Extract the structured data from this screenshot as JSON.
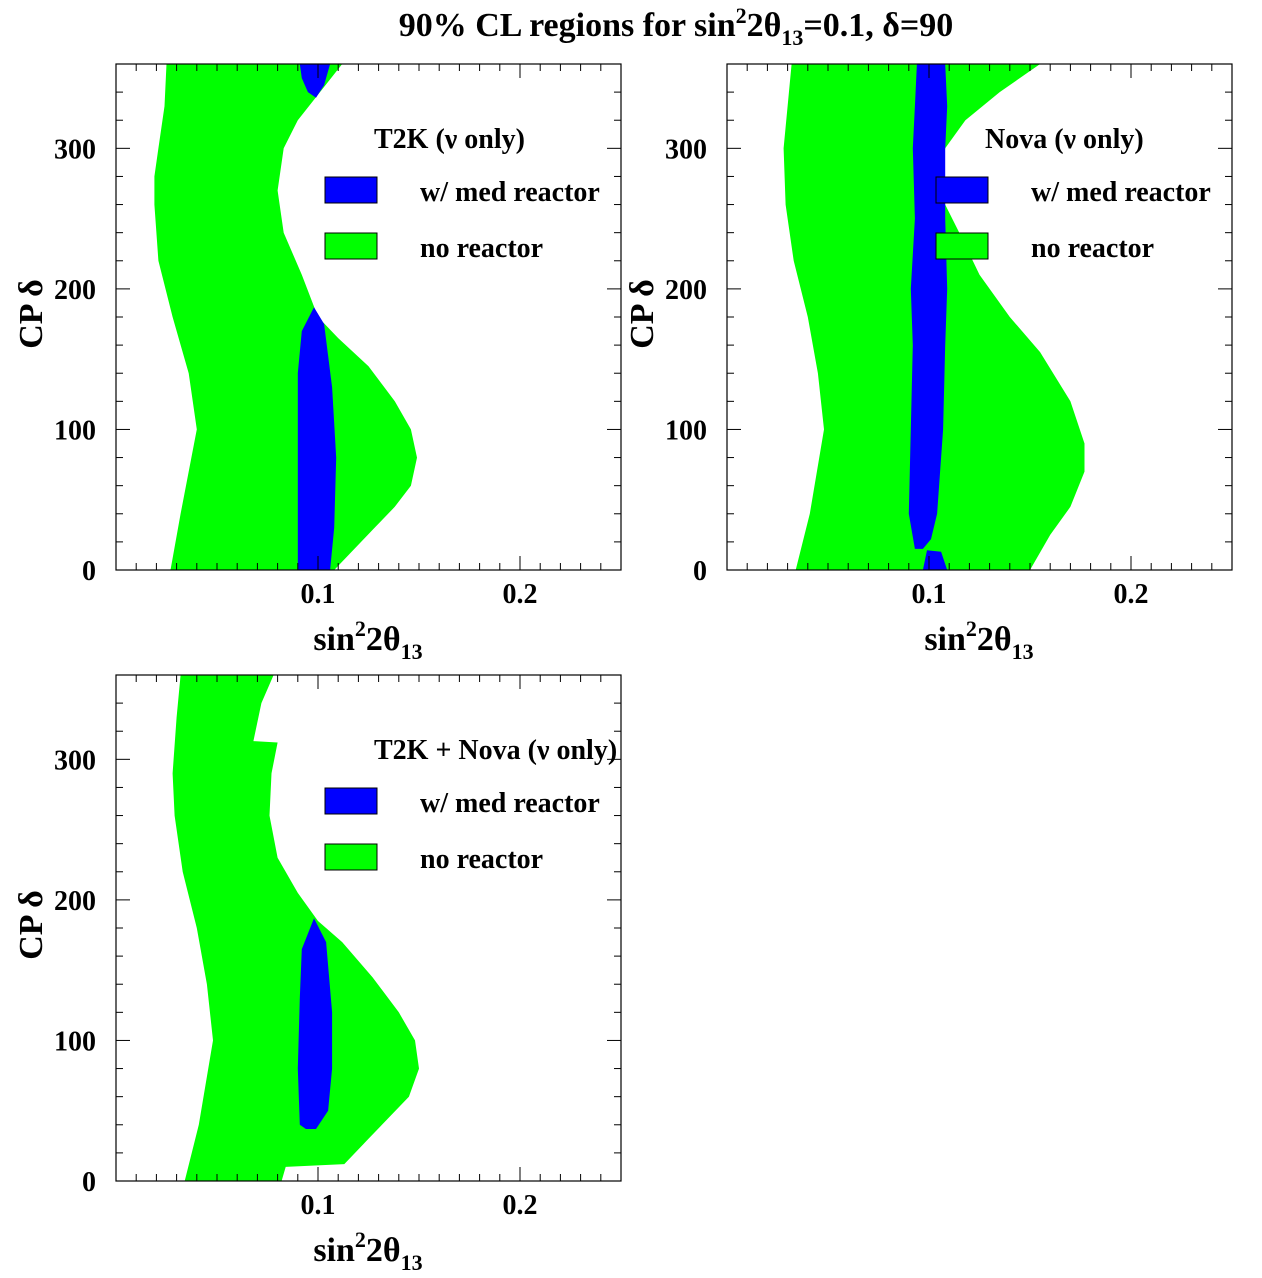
{
  "title": {
    "prefix": "90% CL regions for sin",
    "sup": "2",
    "mid": "2θ",
    "sub": "13",
    "suffix": "=0.1, δ=90"
  },
  "colors": {
    "no_reactor": "#00ff00",
    "with_reactor": "#0000ff",
    "frame": "#000000",
    "background": "#ffffff"
  },
  "chart_data": [
    {
      "type": "area",
      "panel": "top-left",
      "legend_title": "T2K (ν only)",
      "legend": [
        "w/ med reactor",
        "no reactor"
      ],
      "legend_placement": "top-right",
      "xlabel": {
        "base": "sin",
        "sup": "2",
        "mid": "2θ",
        "sub": "13"
      },
      "ylabel": "CP δ",
      "xlim": [
        0,
        0.25
      ],
      "ylim": [
        0,
        360
      ],
      "xticks": [
        0.1,
        0.2
      ],
      "xtick_labels": [
        "0.1",
        "0.2"
      ],
      "yticks": [
        0,
        100,
        200,
        300
      ],
      "ytick_labels": [
        "0",
        "100",
        "200",
        "300"
      ],
      "grid": false,
      "series": [
        {
          "name": "no reactor",
          "regions": [
            [
              [
                0.027,
                0
              ],
              [
                0.032,
                40
              ],
              [
                0.04,
                100
              ],
              [
                0.036,
                140
              ],
              [
                0.028,
                180
              ],
              [
                0.021,
                220
              ],
              [
                0.019,
                260
              ],
              [
                0.019,
                280
              ],
              [
                0.021,
                300
              ],
              [
                0.024,
                330
              ],
              [
                0.025,
                360
              ],
              [
                0.112,
                360
              ],
              [
                0.101,
                340
              ],
              [
                0.09,
                320
              ],
              [
                0.083,
                300
              ],
              [
                0.08,
                270
              ],
              [
                0.083,
                240
              ],
              [
                0.092,
                210
              ],
              [
                0.1,
                180
              ],
              [
                0.11,
                165
              ],
              [
                0.125,
                145
              ],
              [
                0.138,
                120
              ],
              [
                0.146,
                100
              ],
              [
                0.149,
                80
              ],
              [
                0.146,
                60
              ],
              [
                0.138,
                45
              ],
              [
                0.128,
                30
              ],
              [
                0.118,
                15
              ],
              [
                0.108,
                0
              ]
            ]
          ]
        },
        {
          "name": "w/ med reactor",
          "regions": [
            [
              [
                0.09,
                0
              ],
              [
                0.09,
                90
              ],
              [
                0.09,
                140
              ],
              [
                0.092,
                170
              ],
              [
                0.098,
                187
              ],
              [
                0.103,
                175
              ],
              [
                0.107,
                130
              ],
              [
                0.109,
                80
              ],
              [
                0.108,
                30
              ],
              [
                0.106,
                0
              ]
            ],
            [
              [
                0.091,
                360
              ],
              [
                0.092,
                350
              ],
              [
                0.095,
                340
              ],
              [
                0.099,
                336
              ],
              [
                0.103,
                345
              ],
              [
                0.106,
                360
              ]
            ]
          ]
        }
      ]
    },
    {
      "type": "area",
      "panel": "top-right",
      "legend_title": "Nova (ν only)",
      "legend": [
        "w/ med reactor",
        "no reactor"
      ],
      "legend_placement": "top-right",
      "xlabel": {
        "base": "sin",
        "sup": "2",
        "mid": "2θ",
        "sub": "13"
      },
      "ylabel": "CP δ",
      "xlim": [
        0,
        0.25
      ],
      "ylim": [
        0,
        360
      ],
      "xticks": [
        0.1,
        0.2
      ],
      "xtick_labels": [
        "0.1",
        "0.2"
      ],
      "yticks": [
        0,
        100,
        200,
        300
      ],
      "ytick_labels": [
        "0",
        "100",
        "200",
        "300"
      ],
      "grid": false,
      "series": [
        {
          "name": "no reactor",
          "regions": [
            [
              [
                0.034,
                0
              ],
              [
                0.041,
                40
              ],
              [
                0.048,
                100
              ],
              [
                0.045,
                140
              ],
              [
                0.04,
                180
              ],
              [
                0.033,
                220
              ],
              [
                0.029,
                260
              ],
              [
                0.028,
                300
              ],
              [
                0.03,
                330
              ],
              [
                0.032,
                360
              ],
              [
                0.155,
                360
              ],
              [
                0.135,
                340
              ],
              [
                0.118,
                320
              ],
              [
                0.108,
                300
              ],
              [
                0.105,
                280
              ],
              [
                0.108,
                260
              ],
              [
                0.115,
                240
              ],
              [
                0.125,
                210
              ],
              [
                0.14,
                180
              ],
              [
                0.155,
                155
              ],
              [
                0.17,
                120
              ],
              [
                0.177,
                90
              ],
              [
                0.177,
                70
              ],
              [
                0.17,
                45
              ],
              [
                0.16,
                25
              ],
              [
                0.15,
                0
              ]
            ]
          ]
        },
        {
          "name": "w/ med reactor",
          "regions": [
            [
              [
                0.093,
                15
              ],
              [
                0.09,
                40
              ],
              [
                0.091,
                100
              ],
              [
                0.092,
                160
              ],
              [
                0.091,
                200
              ],
              [
                0.093,
                250
              ],
              [
                0.092,
                300
              ],
              [
                0.093,
                330
              ],
              [
                0.094,
                360
              ],
              [
                0.108,
                360
              ],
              [
                0.109,
                330
              ],
              [
                0.108,
                300
              ],
              [
                0.108,
                250
              ],
              [
                0.109,
                200
              ],
              [
                0.108,
                160
              ],
              [
                0.107,
                100
              ],
              [
                0.104,
                40
              ],
              [
                0.101,
                22
              ],
              [
                0.097,
                15
              ]
            ],
            [
              [
                0.097,
                0
              ],
              [
                0.099,
                14
              ],
              [
                0.106,
                13
              ],
              [
                0.109,
                0
              ]
            ]
          ]
        }
      ]
    },
    {
      "type": "area",
      "panel": "bottom-left",
      "legend_title": "T2K + Nova (ν only)",
      "legend": [
        "w/ med reactor",
        "no reactor"
      ],
      "legend_placement": "top-right",
      "xlabel": {
        "base": "sin",
        "sup": "2",
        "mid": "2θ",
        "sub": "13"
      },
      "ylabel": "CP δ",
      "xlim": [
        0,
        0.25
      ],
      "ylim": [
        0,
        360
      ],
      "xticks": [
        0.1,
        0.2
      ],
      "xtick_labels": [
        "0.1",
        "0.2"
      ],
      "yticks": [
        0,
        100,
        200,
        300
      ],
      "ytick_labels": [
        "0",
        "100",
        "200",
        "300"
      ],
      "grid": false,
      "series": [
        {
          "name": "no reactor",
          "regions": [
            [
              [
                0.034,
                0
              ],
              [
                0.041,
                40
              ],
              [
                0.048,
                100
              ],
              [
                0.045,
                140
              ],
              [
                0.04,
                180
              ],
              [
                0.033,
                220
              ],
              [
                0.029,
                260
              ],
              [
                0.028,
                290
              ],
              [
                0.03,
                330
              ],
              [
                0.032,
                360
              ],
              [
                0.078,
                360
              ],
              [
                0.072,
                340
              ],
              [
                0.068,
                313
              ],
              [
                0.08,
                312
              ],
              [
                0.077,
                290
              ],
              [
                0.076,
                260
              ],
              [
                0.08,
                230
              ],
              [
                0.09,
                205
              ],
              [
                0.1,
                185
              ],
              [
                0.112,
                170
              ],
              [
                0.127,
                145
              ],
              [
                0.14,
                120
              ],
              [
                0.148,
                100
              ],
              [
                0.15,
                80
              ],
              [
                0.145,
                60
              ],
              [
                0.135,
                45
              ],
              [
                0.125,
                30
              ],
              [
                0.113,
                12
              ],
              [
                0.084,
                10
              ],
              [
                0.082,
                0
              ]
            ]
          ]
        },
        {
          "name": "w/ med reactor",
          "regions": [
            [
              [
                0.091,
                40
              ],
              [
                0.09,
                80
              ],
              [
                0.091,
                130
              ],
              [
                0.092,
                165
              ],
              [
                0.098,
                187
              ],
              [
                0.104,
                170
              ],
              [
                0.107,
                120
              ],
              [
                0.107,
                80
              ],
              [
                0.105,
                50
              ],
              [
                0.099,
                37
              ],
              [
                0.094,
                37
              ]
            ]
          ]
        }
      ]
    }
  ]
}
